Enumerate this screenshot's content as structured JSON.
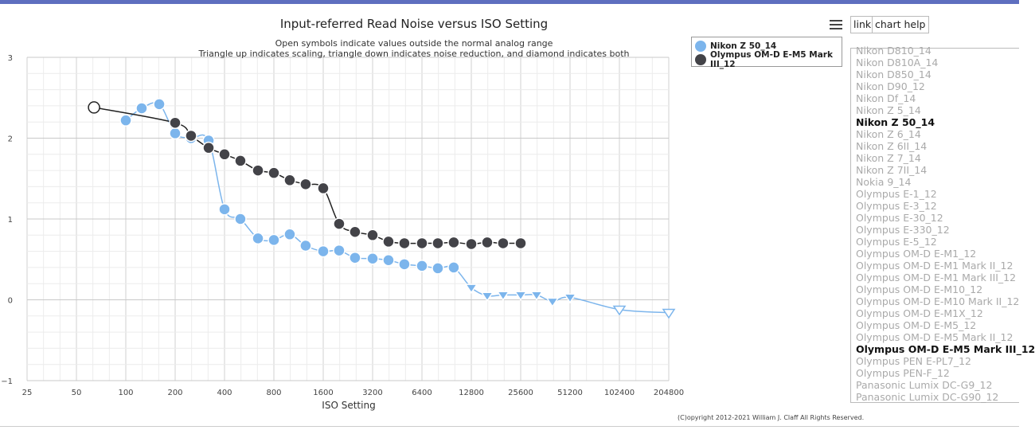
{
  "chart_data": {
    "type": "line",
    "title": "Input-referred Read Noise versus ISO Setting",
    "subtitle_lines": [
      "Open symbols indicate values outside the normal analog range",
      "Triangle up indicates scaling, triangle down indicates noise reduction, and diamond indicates both"
    ],
    "xlabel": "ISO Setting",
    "ylabel": "",
    "x_scale": "log2",
    "xlim": [
      25,
      204800
    ],
    "ylim": [
      -1,
      3
    ],
    "x_ticks": [
      "25",
      "50",
      "100",
      "200",
      "400",
      "800",
      "1600",
      "3200",
      "6400",
      "12800",
      "25600",
      "51200",
      "102400",
      "204800"
    ],
    "y_ticks": [
      "3",
      "2",
      "1",
      "0",
      "−1"
    ],
    "grid": true,
    "legend_position": "top-right",
    "series": [
      {
        "name": "Nikon Z 50_14",
        "color": "#7cb5ec",
        "points": [
          {
            "x": 100,
            "y": 2.22,
            "m": "c"
          },
          {
            "x": 125,
            "y": 2.37,
            "m": "c"
          },
          {
            "x": 160,
            "y": 2.42,
            "m": "c"
          },
          {
            "x": 200,
            "y": 2.06,
            "m": "c"
          },
          {
            "x": 250,
            "y": 2.0,
            "m": "c"
          },
          {
            "x": 320,
            "y": 1.97,
            "m": "c"
          },
          {
            "x": 400,
            "y": 1.12,
            "m": "c"
          },
          {
            "x": 500,
            "y": 1.0,
            "m": "c"
          },
          {
            "x": 640,
            "y": 0.76,
            "m": "c"
          },
          {
            "x": 800,
            "y": 0.74,
            "m": "c"
          },
          {
            "x": 1000,
            "y": 0.81,
            "m": "c"
          },
          {
            "x": 1250,
            "y": 0.67,
            "m": "c"
          },
          {
            "x": 1600,
            "y": 0.6,
            "m": "c"
          },
          {
            "x": 2000,
            "y": 0.61,
            "m": "c"
          },
          {
            "x": 2500,
            "y": 0.52,
            "m": "c"
          },
          {
            "x": 3200,
            "y": 0.51,
            "m": "c"
          },
          {
            "x": 4000,
            "y": 0.49,
            "m": "c"
          },
          {
            "x": 5000,
            "y": 0.44,
            "m": "c"
          },
          {
            "x": 6400,
            "y": 0.42,
            "m": "c"
          },
          {
            "x": 8000,
            "y": 0.39,
            "m": "c"
          },
          {
            "x": 10000,
            "y": 0.4,
            "m": "c"
          },
          {
            "x": 12800,
            "y": 0.15,
            "m": "td"
          },
          {
            "x": 16000,
            "y": 0.05,
            "m": "td"
          },
          {
            "x": 20000,
            "y": 0.06,
            "m": "td"
          },
          {
            "x": 25600,
            "y": 0.06,
            "m": "td"
          },
          {
            "x": 32000,
            "y": 0.06,
            "m": "td"
          },
          {
            "x": 40000,
            "y": -0.02,
            "m": "td"
          },
          {
            "x": 51200,
            "y": 0.03,
            "m": "td"
          },
          {
            "x": 102400,
            "y": -0.12,
            "m": "tdo"
          },
          {
            "x": 204800,
            "y": -0.16,
            "m": "tdo"
          }
        ]
      },
      {
        "name": "Olympus OM-D E-M5 Mark III_12",
        "color": "#434348",
        "points": [
          {
            "x": 64,
            "y": 2.38,
            "m": "co"
          },
          {
            "x": 200,
            "y": 2.19,
            "m": "c"
          },
          {
            "x": 250,
            "y": 2.03,
            "m": "c"
          },
          {
            "x": 320,
            "y": 1.88,
            "m": "c"
          },
          {
            "x": 400,
            "y": 1.8,
            "m": "c"
          },
          {
            "x": 500,
            "y": 1.72,
            "m": "c"
          },
          {
            "x": 640,
            "y": 1.6,
            "m": "c"
          },
          {
            "x": 800,
            "y": 1.57,
            "m": "c"
          },
          {
            "x": 1000,
            "y": 1.48,
            "m": "c"
          },
          {
            "x": 1250,
            "y": 1.43,
            "m": "c"
          },
          {
            "x": 1600,
            "y": 1.38,
            "m": "c"
          },
          {
            "x": 2000,
            "y": 0.94,
            "m": "c"
          },
          {
            "x": 2500,
            "y": 0.84,
            "m": "c"
          },
          {
            "x": 3200,
            "y": 0.8,
            "m": "c"
          },
          {
            "x": 4000,
            "y": 0.72,
            "m": "c"
          },
          {
            "x": 5000,
            "y": 0.7,
            "m": "c"
          },
          {
            "x": 6400,
            "y": 0.7,
            "m": "c"
          },
          {
            "x": 8000,
            "y": 0.7,
            "m": "c"
          },
          {
            "x": 10000,
            "y": 0.71,
            "m": "c"
          },
          {
            "x": 12800,
            "y": 0.69,
            "m": "c"
          },
          {
            "x": 16000,
            "y": 0.71,
            "m": "c"
          },
          {
            "x": 20000,
            "y": 0.7,
            "m": "c"
          },
          {
            "x": 25600,
            "y": 0.7,
            "m": "c"
          }
        ]
      }
    ],
    "copyright": "(C)opyright 2012-2021 William J. Claff All Rights Reserved."
  },
  "toolbar": {
    "menu_icon": "hamburger-menu-icon",
    "link_label": "link",
    "help_label": "chart help"
  },
  "camera_list": {
    "items": [
      {
        "label": "Nikon D810_14",
        "selected": false
      },
      {
        "label": "Nikon D810A_14",
        "selected": false
      },
      {
        "label": "Nikon D850_14",
        "selected": false
      },
      {
        "label": "Nikon D90_12",
        "selected": false
      },
      {
        "label": "Nikon Df_14",
        "selected": false
      },
      {
        "label": "Nikon Z 5_14",
        "selected": false
      },
      {
        "label": "Nikon Z 50_14",
        "selected": true
      },
      {
        "label": "Nikon Z 6_14",
        "selected": false
      },
      {
        "label": "Nikon Z 6II_14",
        "selected": false
      },
      {
        "label": "Nikon Z 7_14",
        "selected": false
      },
      {
        "label": "Nikon Z 7II_14",
        "selected": false
      },
      {
        "label": "Nokia 9_14",
        "selected": false
      },
      {
        "label": "Olympus E-1_12",
        "selected": false
      },
      {
        "label": "Olympus E-3_12",
        "selected": false
      },
      {
        "label": "Olympus E-30_12",
        "selected": false
      },
      {
        "label": "Olympus E-330_12",
        "selected": false
      },
      {
        "label": "Olympus E-5_12",
        "selected": false
      },
      {
        "label": "Olympus OM-D E-M1_12",
        "selected": false
      },
      {
        "label": "Olympus OM-D E-M1 Mark II_12",
        "selected": false
      },
      {
        "label": "Olympus OM-D E-M1 Mark III_12",
        "selected": false
      },
      {
        "label": "Olympus OM-D E-M10_12",
        "selected": false
      },
      {
        "label": "Olympus OM-D E-M10 Mark II_12",
        "selected": false
      },
      {
        "label": "Olympus OM-D E-M1X_12",
        "selected": false
      },
      {
        "label": "Olympus OM-D E-M5_12",
        "selected": false
      },
      {
        "label": "Olympus OM-D E-M5 Mark II_12",
        "selected": false
      },
      {
        "label": "Olympus OM-D E-M5 Mark III_12",
        "selected": true
      },
      {
        "label": "Olympus PEN E-PL7_12",
        "selected": false
      },
      {
        "label": "Olympus PEN-F_12",
        "selected": false
      },
      {
        "label": "Panasonic Lumix DC-G9_12",
        "selected": false
      },
      {
        "label": "Panasonic Lumix DC-G90_12",
        "selected": false
      }
    ]
  }
}
